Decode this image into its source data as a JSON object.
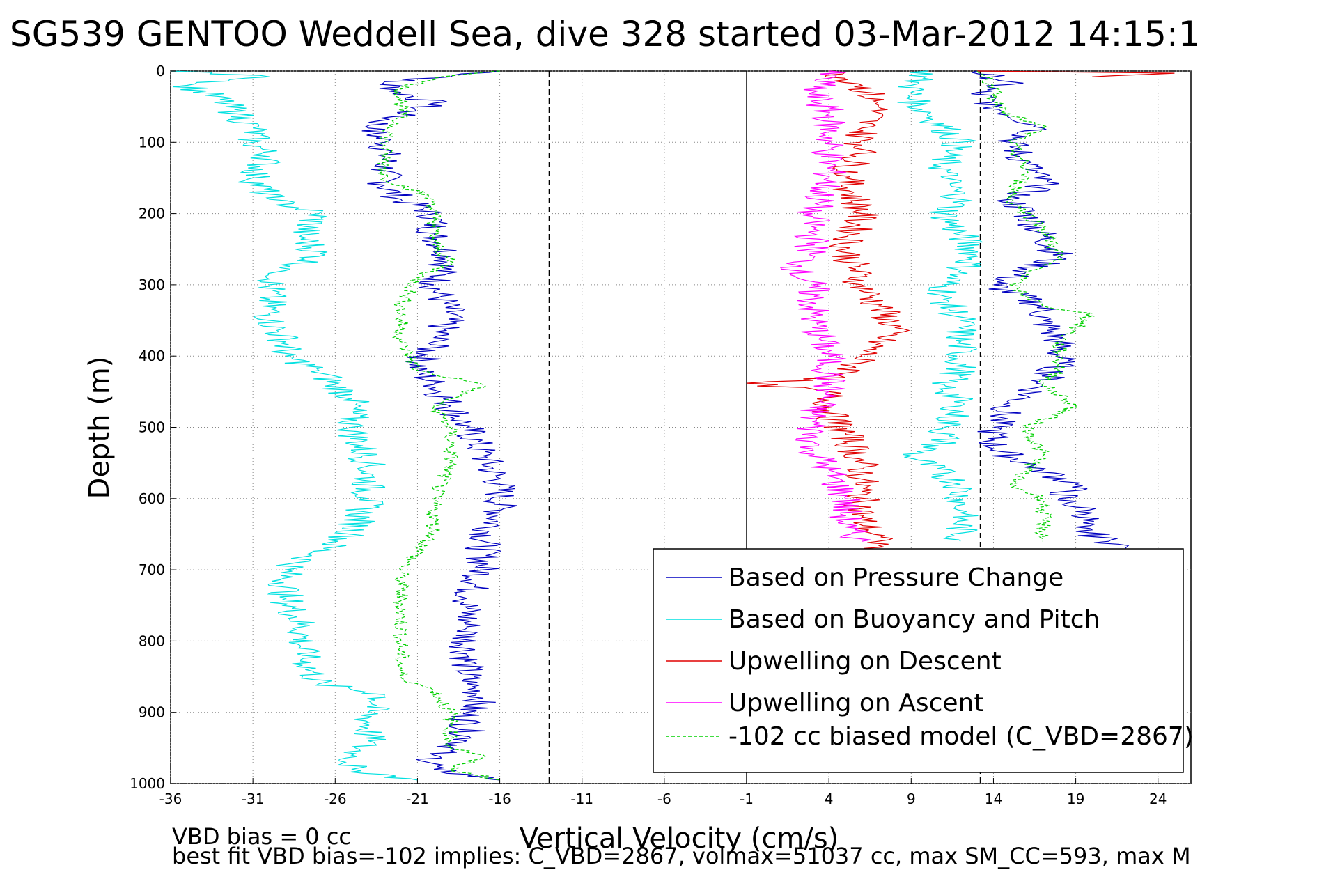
{
  "chart_data": {
    "type": "line",
    "title": "SG539 GENTOO Weddell Sea, dive 328 started 03-Mar-2012 14:15:1",
    "xlabel": "Vertical Velocity (cm/s)",
    "ylabel": "Depth (m)",
    "xlim": [
      -36,
      26
    ],
    "ylim": [
      0,
      1000
    ],
    "y_reversed": true,
    "x_ticks": [
      -36,
      -31,
      -26,
      -21,
      -16,
      -11,
      -6,
      -1,
      4,
      9,
      14,
      19,
      24
    ],
    "y_ticks": [
      0,
      100,
      200,
      300,
      400,
      500,
      600,
      700,
      800,
      900,
      1000
    ],
    "grid": true,
    "legend_position": "lower-right",
    "reference_lines": [
      {
        "x": -13,
        "style": "dashed",
        "color": "#000000"
      },
      {
        "x": -1,
        "style": "solid",
        "color": "#000000"
      },
      {
        "x": 13.2,
        "style": "dashed",
        "color": "#000000"
      }
    ],
    "footer_lines": [
      "VBD bias = 0 cc",
      "best fit VBD bias=-102 implies: C_VBD=2867, volmax=51037 cc, max SM_CC=593, max M"
    ],
    "series": [
      {
        "name": "Based on Pressure Change",
        "color": "#0000c0",
        "style": "solid",
        "segments": [
          {
            "depth": [
              0,
              8,
              15,
              30,
              45,
              60,
              80,
              100,
              120,
              140,
              160,
              180,
              200,
              230,
              260,
              300,
              340,
              380,
              420,
              440,
              470,
              500,
              540,
              580,
              620,
              660,
              700,
              740,
              780,
              820,
              860,
              880,
              900,
              940,
              960,
              980,
              995
            ],
            "x": [
              -16,
              -19,
              -23,
              -22,
              -20,
              -22,
              -24,
              -23,
              -23,
              -23,
              -23,
              -22,
              -20,
              -20,
              -19,
              -20,
              -19,
              -20,
              -21,
              -20,
              -19,
              -18,
              -17,
              -16,
              -16,
              -17,
              -17,
              -18,
              -18,
              -18,
              -18,
              -17,
              -18,
              -18,
              -20,
              -20,
              -16
            ]
          },
          {
            "depth": [
              0,
              8,
              15,
              30,
              50,
              80,
              100,
              130,
              160,
              180,
              200,
              230,
              260,
              300,
              330,
              350,
              380,
              410,
              440,
              470,
              500,
              530,
              560,
              580,
              600,
              620,
              640,
              660,
              670
            ],
            "x": [
              13,
              14,
              15,
              13,
              14,
              17,
              15,
              16,
              17,
              15,
              16,
              17,
              18,
              14,
              17,
              17,
              18,
              18,
              17,
              15,
              14,
              14,
              17,
              19,
              18,
              20,
              19,
              21,
              22
            ]
          }
        ]
      },
      {
        "name": "Based on Buoyancy and Pitch",
        "color": "#00e0e0",
        "style": "solid",
        "segments": [
          {
            "depth": [
              0,
              8,
              20,
              40,
              60,
              80,
              100,
              120,
              150,
              180,
              200,
              230,
              260,
              280,
              300,
              320,
              350,
              380,
              400,
              420,
              440,
              460,
              500,
              550,
              600,
              650,
              700,
              740,
              780,
              820,
              860,
              875,
              900,
              940,
              960,
              980,
              995
            ],
            "x": [
              -36,
              -30,
              -35,
              -33,
              -32,
              -31,
              -31,
              -30,
              -31,
              -30,
              -27,
              -28,
              -27,
              -29,
              -30,
              -30,
              -30,
              -29,
              -29,
              -27,
              -26,
              -25,
              -25,
              -24,
              -24,
              -25,
              -29,
              -29,
              -28,
              -28,
              -27,
              -23,
              -24,
              -24,
              -25,
              -25,
              -21
            ]
          },
          {
            "depth": [
              0,
              20,
              40,
              60,
              80,
              100,
              120,
              150,
              180,
              200,
              230,
              260,
              280,
              300,
              320,
              350,
              380,
              420,
              440,
              470,
              500,
              520,
              540,
              580,
              620,
              660
            ],
            "x": [
              10,
              9,
              9,
              10,
              11,
              12,
              11,
              11,
              12,
              11,
              12,
              13,
              12,
              11,
              11,
              12,
              12,
              12,
              11,
              12,
              11,
              11,
              9,
              12,
              12,
              12
            ]
          }
        ]
      },
      {
        "name": "Upwelling on Descent",
        "color": "#e00000",
        "style": "solid",
        "segments": [
          {
            "depth": [
              0,
              20,
              50,
              80,
              110,
              150,
              200,
              250,
              300,
              330,
              360,
              400,
              430,
              438,
              450,
              480,
              510,
              550,
              590,
              630,
              660,
              680
            ],
            "x": [
              4,
              6,
              7,
              6,
              6,
              5,
              6,
              5,
              6,
              7,
              8,
              6,
              5,
              -1,
              4,
              4,
              5,
              6,
              6,
              6,
              7,
              7
            ]
          },
          {
            "depth": [
              0,
              3,
              8
            ],
            "x": [
              13,
              25,
              20
            ]
          }
        ]
      },
      {
        "name": "Upwelling on Ascent",
        "color": "#ff00ff",
        "style": "solid",
        "segments": [
          {
            "depth": [
              0,
              30,
              60,
              100,
              150,
              200,
              250,
              280,
              300,
              350,
              400,
              450,
              480,
              500,
              530,
              560,
              600,
              640,
              660
            ],
            "x": [
              4,
              3,
              4,
              4,
              4,
              3,
              3,
              2,
              3,
              3,
              4,
              4,
              3,
              3,
              3,
              4,
              5,
              5,
              6
            ]
          }
        ]
      },
      {
        "name": "-102 cc biased model (C_VBD=2867)",
        "color": "#00d000",
        "style": "dashed",
        "segments": [
          {
            "depth": [
              0,
              10,
              25,
              60,
              100,
              150,
              180,
              200,
              240,
              270,
              290,
              330,
              380,
              420,
              440,
              470,
              500,
              550,
              600,
              650,
              700,
              750,
              800,
              850,
              870,
              900,
              950,
              960,
              980,
              995
            ],
            "x": [
              -16,
              -20,
              -22,
              -22,
              -23,
              -23,
              -20,
              -20,
              -20,
              -19,
              -21,
              -22,
              -22,
              -21,
              -17,
              -20,
              -19,
              -19,
              -20,
              -20,
              -22,
              -22,
              -22,
              -22,
              -20,
              -19,
              -19,
              -17,
              -19,
              -16
            ]
          },
          {
            "depth": [
              0,
              20,
              40,
              60,
              80,
              100,
              140,
              180,
              220,
              260,
              300,
              330,
              340,
              380,
              420,
              440,
              470,
              500,
              540,
              580,
              600,
              620,
              660
            ],
            "x": [
              13,
              14,
              14,
              15,
              17,
              15,
              16,
              15,
              17,
              18,
              15,
              17,
              20,
              18,
              18,
              17,
              19,
              16,
              17,
              15,
              17,
              17,
              17
            ]
          }
        ]
      }
    ]
  }
}
